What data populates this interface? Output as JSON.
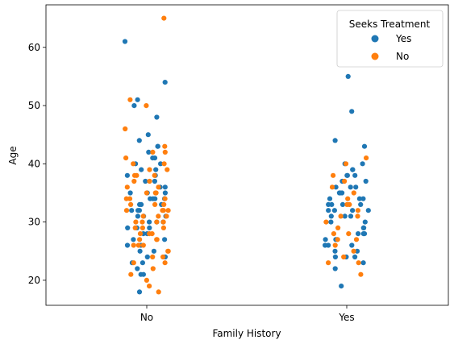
{
  "chart_data": {
    "type": "scatter",
    "subtype": "strip",
    "xlabel": "Family History",
    "ylabel": "Age",
    "categories": [
      "No",
      "Yes"
    ],
    "ylim": [
      15.7,
      67.3
    ],
    "yticks": [
      20,
      30,
      40,
      50,
      60
    ],
    "grid": false,
    "legend": {
      "title": "Seeks Treatment",
      "placement": "top-right"
    },
    "series": [
      {
        "name": "Yes",
        "color": "#1f77b4",
        "points": [
          {
            "category": "No",
            "y": 61
          },
          {
            "category": "No",
            "y": 54
          },
          {
            "category": "No",
            "y": 51
          },
          {
            "category": "No",
            "y": 50
          },
          {
            "category": "No",
            "y": 48
          },
          {
            "category": "No",
            "y": 45
          },
          {
            "category": "No",
            "y": 44
          },
          {
            "category": "No",
            "y": 43
          },
          {
            "category": "No",
            "y": 43
          },
          {
            "category": "No",
            "y": 42
          },
          {
            "category": "No",
            "y": 41
          },
          {
            "category": "No",
            "y": 41
          },
          {
            "category": "No",
            "y": 40
          },
          {
            "category": "No",
            "y": 40
          },
          {
            "category": "No",
            "y": 39
          },
          {
            "category": "No",
            "y": 39
          },
          {
            "category": "No",
            "y": 38
          },
          {
            "category": "No",
            "y": 38
          },
          {
            "category": "No",
            "y": 37
          },
          {
            "category": "No",
            "y": 37
          },
          {
            "category": "No",
            "y": 36
          },
          {
            "category": "No",
            "y": 36
          },
          {
            "category": "No",
            "y": 35
          },
          {
            "category": "No",
            "y": 35
          },
          {
            "category": "No",
            "y": 35
          },
          {
            "category": "No",
            "y": 34
          },
          {
            "category": "No",
            "y": 34
          },
          {
            "category": "No",
            "y": 34
          },
          {
            "category": "No",
            "y": 34
          },
          {
            "category": "No",
            "y": 34
          },
          {
            "category": "No",
            "y": 33
          },
          {
            "category": "No",
            "y": 33
          },
          {
            "category": "No",
            "y": 33
          },
          {
            "category": "No",
            "y": 32
          },
          {
            "category": "No",
            "y": 32
          },
          {
            "category": "No",
            "y": 32
          },
          {
            "category": "No",
            "y": 31
          },
          {
            "category": "No",
            "y": 31
          },
          {
            "category": "No",
            "y": 31
          },
          {
            "category": "No",
            "y": 30
          },
          {
            "category": "No",
            "y": 30
          },
          {
            "category": "No",
            "y": 30
          },
          {
            "category": "No",
            "y": 29
          },
          {
            "category": "No",
            "y": 29
          },
          {
            "category": "No",
            "y": 29
          },
          {
            "category": "No",
            "y": 28
          },
          {
            "category": "No",
            "y": 28
          },
          {
            "category": "No",
            "y": 27
          },
          {
            "category": "No",
            "y": 27
          },
          {
            "category": "No",
            "y": 26
          },
          {
            "category": "No",
            "y": 26
          },
          {
            "category": "No",
            "y": 25
          },
          {
            "category": "No",
            "y": 25
          },
          {
            "category": "No",
            "y": 24
          },
          {
            "category": "No",
            "y": 24
          },
          {
            "category": "No",
            "y": 23
          },
          {
            "category": "No",
            "y": 23
          },
          {
            "category": "No",
            "y": 22
          },
          {
            "category": "No",
            "y": 21
          },
          {
            "category": "No",
            "y": 21
          },
          {
            "category": "No",
            "y": 18
          },
          {
            "category": "Yes",
            "y": 55
          },
          {
            "category": "Yes",
            "y": 49
          },
          {
            "category": "Yes",
            "y": 44
          },
          {
            "category": "Yes",
            "y": 43
          },
          {
            "category": "Yes",
            "y": 40
          },
          {
            "category": "Yes",
            "y": 40
          },
          {
            "category": "Yes",
            "y": 39
          },
          {
            "category": "Yes",
            "y": 39
          },
          {
            "category": "Yes",
            "y": 38
          },
          {
            "category": "Yes",
            "y": 38
          },
          {
            "category": "Yes",
            "y": 38
          },
          {
            "category": "Yes",
            "y": 37
          },
          {
            "category": "Yes",
            "y": 37
          },
          {
            "category": "Yes",
            "y": 36
          },
          {
            "category": "Yes",
            "y": 36
          },
          {
            "category": "Yes",
            "y": 36
          },
          {
            "category": "Yes",
            "y": 35
          },
          {
            "category": "Yes",
            "y": 35
          },
          {
            "category": "Yes",
            "y": 35
          },
          {
            "category": "Yes",
            "y": 34
          },
          {
            "category": "Yes",
            "y": 34
          },
          {
            "category": "Yes",
            "y": 34
          },
          {
            "category": "Yes",
            "y": 33
          },
          {
            "category": "Yes",
            "y": 33
          },
          {
            "category": "Yes",
            "y": 33
          },
          {
            "category": "Yes",
            "y": 33
          },
          {
            "category": "Yes",
            "y": 32
          },
          {
            "category": "Yes",
            "y": 32
          },
          {
            "category": "Yes",
            "y": 32
          },
          {
            "category": "Yes",
            "y": 32
          },
          {
            "category": "Yes",
            "y": 31
          },
          {
            "category": "Yes",
            "y": 31
          },
          {
            "category": "Yes",
            "y": 31
          },
          {
            "category": "Yes",
            "y": 30
          },
          {
            "category": "Yes",
            "y": 30
          },
          {
            "category": "Yes",
            "y": 29
          },
          {
            "category": "Yes",
            "y": 29
          },
          {
            "category": "Yes",
            "y": 28
          },
          {
            "category": "Yes",
            "y": 28
          },
          {
            "category": "Yes",
            "y": 28
          },
          {
            "category": "Yes",
            "y": 27
          },
          {
            "category": "Yes",
            "y": 27
          },
          {
            "category": "Yes",
            "y": 27
          },
          {
            "category": "Yes",
            "y": 26
          },
          {
            "category": "Yes",
            "y": 26
          },
          {
            "category": "Yes",
            "y": 26
          },
          {
            "category": "Yes",
            "y": 25
          },
          {
            "category": "Yes",
            "y": 25
          },
          {
            "category": "Yes",
            "y": 24
          },
          {
            "category": "Yes",
            "y": 24
          },
          {
            "category": "Yes",
            "y": 24
          },
          {
            "category": "Yes",
            "y": 23
          },
          {
            "category": "Yes",
            "y": 22
          },
          {
            "category": "Yes",
            "y": 19
          }
        ]
      },
      {
        "name": "No",
        "color": "#ff7f0e",
        "points": [
          {
            "category": "No",
            "y": 65
          },
          {
            "category": "No",
            "y": 51
          },
          {
            "category": "No",
            "y": 50
          },
          {
            "category": "No",
            "y": 46
          },
          {
            "category": "No",
            "y": 43
          },
          {
            "category": "No",
            "y": 42
          },
          {
            "category": "No",
            "y": 42
          },
          {
            "category": "No",
            "y": 41
          },
          {
            "category": "No",
            "y": 40
          },
          {
            "category": "No",
            "y": 40
          },
          {
            "category": "No",
            "y": 39
          },
          {
            "category": "No",
            "y": 39
          },
          {
            "category": "No",
            "y": 38
          },
          {
            "category": "No",
            "y": 38
          },
          {
            "category": "No",
            "y": 38
          },
          {
            "category": "No",
            "y": 37
          },
          {
            "category": "No",
            "y": 37
          },
          {
            "category": "No",
            "y": 36
          },
          {
            "category": "No",
            "y": 36
          },
          {
            "category": "No",
            "y": 35
          },
          {
            "category": "No",
            "y": 35
          },
          {
            "category": "No",
            "y": 35
          },
          {
            "category": "No",
            "y": 34
          },
          {
            "category": "No",
            "y": 34
          },
          {
            "category": "No",
            "y": 34
          },
          {
            "category": "No",
            "y": 33
          },
          {
            "category": "No",
            "y": 33
          },
          {
            "category": "No",
            "y": 33
          },
          {
            "category": "No",
            "y": 32
          },
          {
            "category": "No",
            "y": 32
          },
          {
            "category": "No",
            "y": 32
          },
          {
            "category": "No",
            "y": 32
          },
          {
            "category": "No",
            "y": 31
          },
          {
            "category": "No",
            "y": 31
          },
          {
            "category": "No",
            "y": 31
          },
          {
            "category": "No",
            "y": 30
          },
          {
            "category": "No",
            "y": 30
          },
          {
            "category": "No",
            "y": 30
          },
          {
            "category": "No",
            "y": 30
          },
          {
            "category": "No",
            "y": 29
          },
          {
            "category": "No",
            "y": 29
          },
          {
            "category": "No",
            "y": 29
          },
          {
            "category": "No",
            "y": 28
          },
          {
            "category": "No",
            "y": 28
          },
          {
            "category": "No",
            "y": 28
          },
          {
            "category": "No",
            "y": 27
          },
          {
            "category": "No",
            "y": 27
          },
          {
            "category": "No",
            "y": 27
          },
          {
            "category": "No",
            "y": 26
          },
          {
            "category": "No",
            "y": 26
          },
          {
            "category": "No",
            "y": 26
          },
          {
            "category": "No",
            "y": 25
          },
          {
            "category": "No",
            "y": 25
          },
          {
            "category": "No",
            "y": 24
          },
          {
            "category": "No",
            "y": 24
          },
          {
            "category": "No",
            "y": 23
          },
          {
            "category": "No",
            "y": 23
          },
          {
            "category": "No",
            "y": 22
          },
          {
            "category": "No",
            "y": 21
          },
          {
            "category": "No",
            "y": 20
          },
          {
            "category": "No",
            "y": 19
          },
          {
            "category": "No",
            "y": 18
          },
          {
            "category": "Yes",
            "y": 41
          },
          {
            "category": "Yes",
            "y": 40
          },
          {
            "category": "Yes",
            "y": 38
          },
          {
            "category": "Yes",
            "y": 37
          },
          {
            "category": "Yes",
            "y": 36
          },
          {
            "category": "Yes",
            "y": 35
          },
          {
            "category": "Yes",
            "y": 34
          },
          {
            "category": "Yes",
            "y": 33
          },
          {
            "category": "Yes",
            "y": 33
          },
          {
            "category": "Yes",
            "y": 32
          },
          {
            "category": "Yes",
            "y": 31
          },
          {
            "category": "Yes",
            "y": 31
          },
          {
            "category": "Yes",
            "y": 30
          },
          {
            "category": "Yes",
            "y": 29
          },
          {
            "category": "Yes",
            "y": 28
          },
          {
            "category": "Yes",
            "y": 28
          },
          {
            "category": "Yes",
            "y": 27
          },
          {
            "category": "Yes",
            "y": 27
          },
          {
            "category": "Yes",
            "y": 26
          },
          {
            "category": "Yes",
            "y": 25
          },
          {
            "category": "Yes",
            "y": 24
          },
          {
            "category": "Yes",
            "y": 23
          },
          {
            "category": "Yes",
            "y": 23
          },
          {
            "category": "Yes",
            "y": 21
          }
        ]
      }
    ]
  }
}
